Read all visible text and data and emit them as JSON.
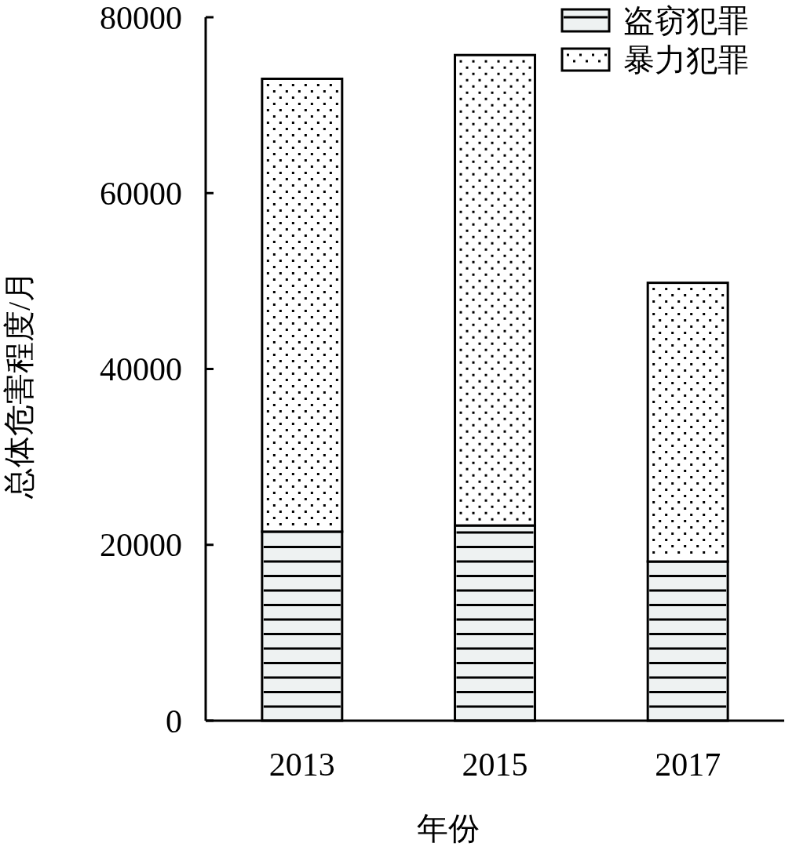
{
  "chart_data": {
    "type": "bar",
    "stacked": true,
    "categories": [
      "2013",
      "2015",
      "2017"
    ],
    "xlabel": "年份",
    "ylabel": "总体危害程度/月",
    "ylim": [
      0,
      80000
    ],
    "yticks": [
      0,
      20000,
      40000,
      60000,
      80000
    ],
    "grid": false,
    "legend": "top right",
    "series": [
      {
        "name": "盗窃犯罪",
        "color": "#eef2f2",
        "values": [
          21500,
          22200,
          18100
        ]
      },
      {
        "name": "暴力犯罪",
        "color": "#ffffff",
        "values": [
          51500,
          53500,
          31700
        ]
      }
    ]
  }
}
